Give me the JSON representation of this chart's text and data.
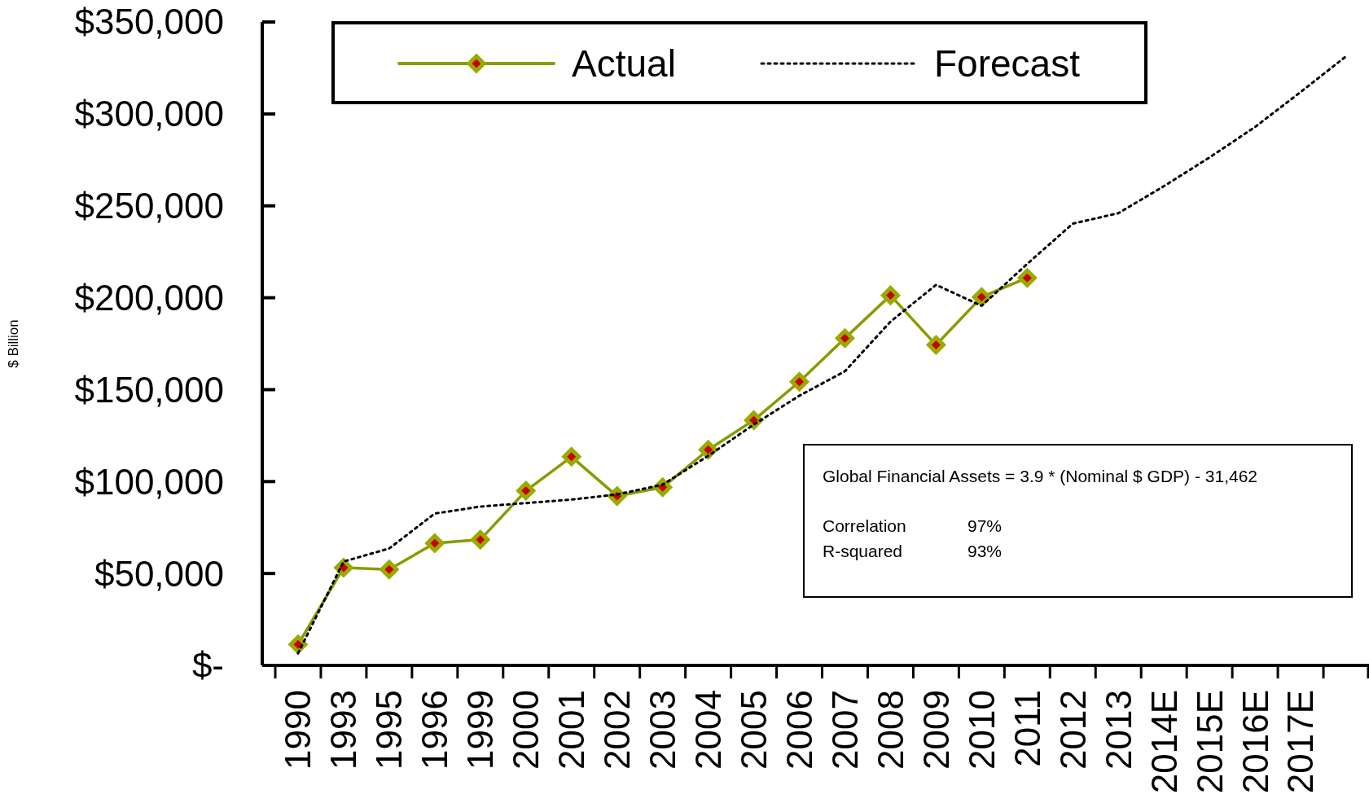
{
  "chart_data": {
    "type": "line",
    "ylabel": "$ Billion",
    "categories": [
      "1990",
      "1993",
      "1995",
      "1996",
      "1999",
      "2000",
      "2001",
      "2002",
      "2003",
      "2004",
      "2005",
      "2006",
      "2007",
      "2008",
      "2009",
      "2010",
      "2011",
      "2012",
      "2013",
      "2014E",
      "2015E",
      "2016E",
      "2017E",
      null
    ],
    "series": [
      {
        "name": "Actual",
        "color": "#8a9a00",
        "marker": "diamond",
        "line_style": "solid",
        "values": [
          11400,
          53200,
          52200,
          66500,
          68400,
          95000,
          113500,
          92100,
          96900,
          117300,
          133400,
          154300,
          178000,
          201300,
          174300,
          200400,
          210800,
          null,
          null,
          null,
          null,
          null,
          null,
          null
        ]
      },
      {
        "name": "Forecast",
        "color": "#000000",
        "marker": "none",
        "line_style": "dotted",
        "values": [
          6600,
          56500,
          63600,
          82600,
          86400,
          88300,
          90200,
          93000,
          98300,
          114000,
          131000,
          146700,
          160000,
          187000,
          207000,
          195600,
          218400,
          240300,
          246000,
          260700,
          276300,
          292900,
          311900,
          331400
        ]
      }
    ],
    "ylim": [
      0,
      350000
    ],
    "yticks": [
      {
        "value": 0,
        "label": "$-"
      },
      {
        "value": 50000,
        "label": "$50,000"
      },
      {
        "value": 100000,
        "label": "$100,000"
      },
      {
        "value": 150000,
        "label": "$150,000"
      },
      {
        "value": 200000,
        "label": "$200,000"
      },
      {
        "value": 250000,
        "label": "$250,000"
      },
      {
        "value": 300000,
        "label": "$300,000"
      },
      {
        "value": 350000,
        "label": "$350,000"
      }
    ],
    "grid": false,
    "legend": "top",
    "annotations": [
      "Global Financial Assets  = 3.9 * (Nominal $ GDP) - 31,462",
      "Correlation",
      "97%",
      "R-squared",
      "93%"
    ]
  }
}
